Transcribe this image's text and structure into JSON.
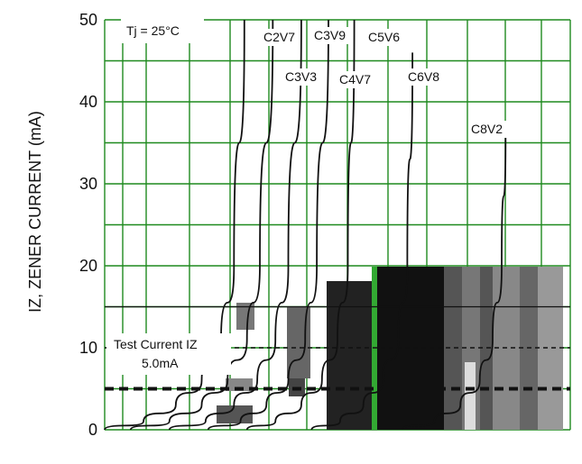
{
  "chart_data": {
    "type": "line",
    "title": "",
    "annotation": "Tj = 25°C",
    "xlabel": "",
    "ylabel": "IZ, ZENER CURRENT (mA)",
    "ylim": [
      0,
      50
    ],
    "yticks": [
      "0",
      "10",
      "20",
      "30",
      "40",
      "50"
    ],
    "grid": true,
    "test_current": {
      "line1": "Test Current IZ",
      "line2": "5.0mA",
      "value": 5.0
    },
    "series": [
      {
        "name": "C2V7",
        "x": [
          0.0,
          0.3,
          0.55,
          0.75,
          0.9,
          1.0,
          1.08
        ],
        "y": [
          0,
          1,
          3,
          6,
          11,
          20,
          50
        ]
      },
      {
        "name": "C3V3",
        "x": [
          0.2,
          0.5,
          0.75,
          0.95,
          1.1,
          1.2,
          1.3
        ],
        "y": [
          0,
          1,
          3,
          6,
          11,
          20,
          50
        ]
      },
      {
        "name": "C3V9",
        "x": [
          0.5,
          0.78,
          1.0,
          1.18,
          1.32,
          1.42,
          1.52
        ],
        "y": [
          0,
          1,
          3,
          6,
          11,
          20,
          50
        ]
      },
      {
        "name": "C4V7",
        "x": [
          0.8,
          1.05,
          1.25,
          1.42,
          1.55,
          1.64,
          1.73
        ],
        "y": [
          0,
          1,
          3,
          6,
          11,
          20,
          50
        ]
      },
      {
        "name": "C5V6",
        "x": [
          1.1,
          1.32,
          1.52,
          1.68,
          1.8,
          1.88,
          1.93
        ],
        "y": [
          0,
          1,
          3,
          6,
          11,
          20,
          50
        ]
      },
      {
        "name": "C6V8",
        "x": [
          1.6,
          1.82,
          2.0,
          2.15,
          2.27,
          2.34,
          2.38
        ],
        "y": [
          0,
          1,
          3,
          6,
          11,
          20,
          46
        ]
      },
      {
        "name": "C8V2",
        "x": [
          2.3,
          2.55,
          2.75,
          2.9,
          3.0,
          3.07,
          3.1
        ],
        "y": [
          0,
          1,
          3,
          6,
          11,
          20,
          37
        ]
      }
    ]
  }
}
